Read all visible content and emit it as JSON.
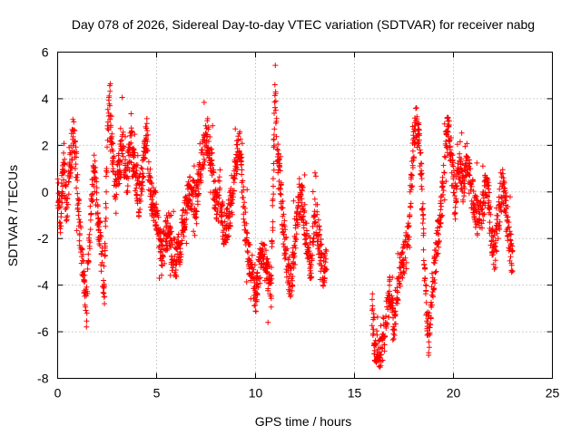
{
  "chart_data": {
    "type": "scatter",
    "title": "Day 078 of 2026, Sidereal Day-to-day VTEC variation (SDTVAR) for receiver nabg",
    "xlabel": "GPS time / hours",
    "ylabel": "SDTVAR / TECUs",
    "xlim": [
      0,
      25
    ],
    "ylim": [
      -8,
      6
    ],
    "xticks": [
      0,
      5,
      10,
      15,
      20,
      25
    ],
    "yticks": [
      -8,
      -6,
      -4,
      -2,
      0,
      2,
      4,
      6
    ],
    "xtick_labels": [
      "0",
      "5",
      "10",
      "15",
      "20",
      "25"
    ],
    "ytick_labels": [
      "-8",
      "-6",
      "-4",
      "-2",
      "0",
      "2",
      "4",
      "6"
    ],
    "grid": true,
    "marker": "+",
    "color": "#ff0000",
    "series": [
      {
        "name": "SDTVAR",
        "tracks": [
          {
            "range": [
              0.0,
              13.6
            ],
            "pts": [
              [
                0.0,
                -0.2
              ],
              [
                0.15,
                -1.2
              ],
              [
                0.3,
                1.4
              ],
              [
                0.45,
                -0.8
              ],
              [
                0.6,
                0.9
              ],
              [
                0.8,
                2.8
              ],
              [
                0.95,
                1.0
              ],
              [
                1.1,
                -1.6
              ],
              [
                1.3,
                -3.5
              ],
              [
                1.45,
                -5.2
              ],
              [
                1.55,
                -3.0
              ],
              [
                1.7,
                -0.5
              ],
              [
                1.85,
                0.9
              ],
              [
                2.0,
                -0.6
              ],
              [
                2.2,
                -2.5
              ],
              [
                2.35,
                -4.2
              ],
              [
                2.5,
                1.8
              ],
              [
                2.6,
                3.9
              ],
              [
                2.75,
                2.2
              ],
              [
                2.9,
                0.2
              ],
              [
                3.1,
                1.0
              ],
              [
                3.3,
                1.8
              ],
              [
                3.5,
                0.5
              ],
              [
                3.7,
                2.1
              ],
              [
                3.9,
                0.9
              ],
              [
                4.1,
                -0.4
              ],
              [
                4.3,
                0.8
              ],
              [
                4.5,
                2.6
              ],
              [
                4.65,
                0.4
              ],
              [
                4.85,
                -0.6
              ],
              [
                5.0,
                -0.9
              ],
              [
                5.2,
                -2.5
              ],
              [
                5.4,
                -2.3
              ],
              [
                5.6,
                -1.4
              ],
              [
                5.8,
                -2.7
              ],
              [
                6.0,
                -2.9
              ],
              [
                6.2,
                -2.2
              ],
              [
                6.4,
                -1.2
              ],
              [
                6.6,
                -0.2
              ],
              [
                6.8,
                0.0
              ],
              [
                7.0,
                -0.5
              ],
              [
                7.2,
                0.8
              ],
              [
                7.4,
                1.9
              ],
              [
                7.6,
                2.4
              ],
              [
                7.8,
                1.1
              ],
              [
                8.0,
                -0.7
              ],
              [
                8.2,
                0.2
              ],
              [
                8.4,
                -1.6
              ],
              [
                8.6,
                -1.2
              ],
              [
                8.8,
                -0.4
              ],
              [
                9.0,
                1.4
              ],
              [
                9.2,
                2.1
              ],
              [
                9.4,
                -0.8
              ],
              [
                9.6,
                -2.5
              ],
              [
                9.8,
                -3.3
              ],
              [
                10.0,
                -4.6
              ],
              [
                10.2,
                -3.2
              ],
              [
                10.4,
                -2.7
              ],
              [
                10.6,
                -3.6
              ],
              [
                10.8,
                -4.2
              ],
              [
                10.9,
                0.6
              ],
              [
                11.0,
                4.9
              ],
              [
                11.1,
                1.2
              ],
              [
                11.25,
                0.5
              ],
              [
                11.4,
                -1.5
              ],
              [
                11.6,
                -3.1
              ],
              [
                11.8,
                -4.0
              ],
              [
                12.0,
                -2.2
              ],
              [
                12.2,
                -0.2
              ],
              [
                12.4,
                -0.6
              ],
              [
                12.6,
                -2.1
              ],
              [
                12.8,
                -3.2
              ],
              [
                13.0,
                -0.6
              ],
              [
                13.2,
                -2.0
              ],
              [
                13.4,
                -3.6
              ],
              [
                13.6,
                -2.6
              ]
            ]
          },
          {
            "range": [
              15.9,
              23.0
            ],
            "pts": [
              [
                15.9,
                -5.0
              ],
              [
                16.0,
                -6.4
              ],
              [
                16.2,
                -6.9
              ],
              [
                16.4,
                -6.7
              ],
              [
                16.6,
                -5.6
              ],
              [
                16.8,
                -4.2
              ],
              [
                17.0,
                -5.6
              ],
              [
                17.2,
                -4.0
              ],
              [
                17.4,
                -3.2
              ],
              [
                17.6,
                -2.6
              ],
              [
                17.8,
                -0.8
              ],
              [
                17.95,
                1.5
              ],
              [
                18.1,
                3.2
              ],
              [
                18.25,
                2.4
              ],
              [
                18.4,
                0.3
              ],
              [
                18.5,
                -2.4
              ],
              [
                18.6,
                -4.5
              ],
              [
                18.75,
                -6.3
              ],
              [
                18.9,
                -4.8
              ],
              [
                19.1,
                -2.7
              ],
              [
                19.3,
                -1.4
              ],
              [
                19.5,
                0.7
              ],
              [
                19.65,
                2.6
              ],
              [
                19.8,
                2.3
              ],
              [
                19.95,
                0.9
              ],
              [
                20.1,
                -0.4
              ],
              [
                20.3,
                1.1
              ],
              [
                20.5,
                0.3
              ],
              [
                20.7,
                1.4
              ],
              [
                20.9,
                0.0
              ],
              [
                21.1,
                -0.7
              ],
              [
                21.3,
                -1.4
              ],
              [
                21.5,
                -0.5
              ],
              [
                21.7,
                0.7
              ],
              [
                21.9,
                -1.8
              ],
              [
                22.1,
                -2.6
              ],
              [
                22.3,
                -0.9
              ],
              [
                22.5,
                0.4
              ],
              [
                22.7,
                -1.2
              ],
              [
                22.85,
                -2.0
              ],
              [
                23.0,
                -3.3
              ]
            ]
          }
        ]
      }
    ]
  }
}
